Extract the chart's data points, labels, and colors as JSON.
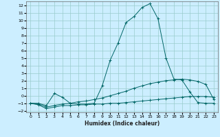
{
  "xlabel": "Humidex (Indice chaleur)",
  "background_color": "#cceeff",
  "grid_color": "#99cccc",
  "line_color": "#006666",
  "xlim": [
    -0.5,
    23.5
  ],
  "ylim": [
    -2.2,
    12.5
  ],
  "xtick_labels": [
    "0",
    "1",
    "2",
    "3",
    "4",
    "5",
    "6",
    "7",
    "8",
    "9",
    "10",
    "11",
    "12",
    "13",
    "14",
    "15",
    "16",
    "17",
    "18",
    "19",
    "20",
    "21",
    "22",
    "23"
  ],
  "xtick_vals": [
    0,
    1,
    2,
    3,
    4,
    5,
    6,
    7,
    8,
    9,
    10,
    11,
    12,
    13,
    14,
    15,
    16,
    17,
    18,
    19,
    20,
    21,
    22,
    23
  ],
  "ytick_vals": [
    -2,
    -1,
    0,
    1,
    2,
    3,
    4,
    5,
    6,
    7,
    8,
    9,
    10,
    11,
    12
  ],
  "series1_x": [
    0,
    1,
    2,
    3,
    4,
    5,
    6,
    7,
    8,
    9,
    10,
    11,
    12,
    13,
    14,
    15,
    16,
    17,
    18,
    19,
    20,
    21,
    22,
    23
  ],
  "series1_y": [
    -1.0,
    -1.2,
    -1.7,
    -1.5,
    -1.3,
    -1.3,
    -1.2,
    -1.2,
    -1.1,
    -1.1,
    -1.0,
    -1.0,
    -0.9,
    -0.8,
    -0.7,
    -0.6,
    -0.5,
    -0.4,
    -0.3,
    -0.2,
    -0.1,
    -0.1,
    -0.1,
    -0.2
  ],
  "series2_x": [
    0,
    1,
    2,
    3,
    4,
    5,
    6,
    7,
    8,
    9,
    10,
    11,
    12,
    13,
    14,
    15,
    16,
    17,
    18,
    19,
    20,
    21,
    22,
    23
  ],
  "series2_y": [
    -1.0,
    -1.1,
    -1.5,
    -1.3,
    -1.1,
    -1.0,
    -0.8,
    -0.7,
    -0.5,
    -0.3,
    0.0,
    0.3,
    0.6,
    1.0,
    1.3,
    1.6,
    1.8,
    2.0,
    2.1,
    2.2,
    2.1,
    1.9,
    1.5,
    -0.5
  ],
  "series3_x": [
    0,
    1,
    2,
    3,
    4,
    5,
    6,
    7,
    8,
    9,
    10,
    11,
    12,
    13,
    14,
    15,
    16,
    17,
    18,
    19,
    20,
    21,
    22,
    23
  ],
  "series3_y": [
    -1.0,
    -1.0,
    -1.3,
    0.3,
    -0.2,
    -1.0,
    -1.1,
    -1.1,
    -1.0,
    1.3,
    4.7,
    7.0,
    9.7,
    10.5,
    11.7,
    12.2,
    10.2,
    5.0,
    2.2,
    2.1,
    0.5,
    -0.9,
    -1.0,
    -1.0
  ]
}
